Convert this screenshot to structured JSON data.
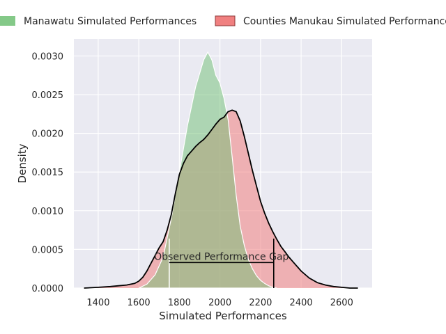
{
  "chart_data": {
    "type": "area",
    "xlabel": "Simulated Performances",
    "ylabel": "Density",
    "xlim": [
      1280,
      2750
    ],
    "ylim": [
      0,
      0.00322
    ],
    "x_ticks": [
      1400,
      1600,
      1800,
      2000,
      2200,
      2400,
      2600
    ],
    "x_tick_labels": [
      "1400",
      "1600",
      "1800",
      "2000",
      "2200",
      "2400",
      "2600"
    ],
    "y_ticks": [
      0,
      0.0005,
      0.001,
      0.0015,
      0.002,
      0.0025,
      0.003
    ],
    "y_tick_labels": [
      "0.0000",
      "0.0005",
      "0.0010",
      "0.0015",
      "0.0020",
      "0.0025",
      "0.0030"
    ],
    "grid": true,
    "legend_position": "top",
    "series": [
      {
        "name": "Manawatu Simulated Performances",
        "color": "#6fbf73",
        "x": [
          1600,
          1640,
          1680,
          1720,
          1760,
          1800,
          1840,
          1880,
          1920,
          1940,
          1960,
          1980,
          2000,
          2020,
          2040,
          2060,
          2080,
          2100,
          2120,
          2140,
          2160,
          2180,
          2200,
          2220,
          2240,
          2260,
          2280
        ],
        "y": [
          0,
          5e-05,
          0.00017,
          0.0004,
          0.0009,
          0.0015,
          0.0021,
          0.0026,
          0.00295,
          0.00305,
          0.00295,
          0.00275,
          0.00265,
          0.00245,
          0.00218,
          0.0017,
          0.0012,
          0.0008,
          0.00055,
          0.00037,
          0.00025,
          0.00016,
          0.0001,
          6e-05,
          3e-05,
          1e-05,
          0
        ]
      },
      {
        "name": "Counties Manukau Simulated Performances",
        "color": "#f08080",
        "x": [
          1330,
          1400,
          1460,
          1500,
          1540,
          1580,
          1600,
          1620,
          1640,
          1660,
          1680,
          1700,
          1720,
          1740,
          1760,
          1780,
          1800,
          1820,
          1840,
          1860,
          1880,
          1900,
          1920,
          1940,
          1960,
          1980,
          2000,
          2020,
          2040,
          2060,
          2080,
          2100,
          2120,
          2140,
          2160,
          2180,
          2200,
          2220,
          2240,
          2260,
          2280,
          2300,
          2320,
          2340,
          2360,
          2380,
          2400,
          2440,
          2480,
          2520,
          2560,
          2600,
          2640,
          2680
        ],
        "y": [
          0,
          1e-05,
          2e-05,
          3e-05,
          4e-05,
          6e-05,
          9e-05,
          0.00014,
          0.00022,
          0.00032,
          0.00042,
          0.00052,
          0.0006,
          0.00075,
          0.00095,
          0.00122,
          0.00147,
          0.00161,
          0.00171,
          0.00177,
          0.00183,
          0.00188,
          0.00192,
          0.00198,
          0.00205,
          0.00212,
          0.00218,
          0.00221,
          0.00228,
          0.0023,
          0.00228,
          0.00216,
          0.00196,
          0.00174,
          0.00152,
          0.00132,
          0.00112,
          0.00097,
          0.00084,
          0.00073,
          0.00063,
          0.00054,
          0.00047,
          0.0004,
          0.00034,
          0.00028,
          0.00022,
          0.00013,
          7e-05,
          4e-05,
          2e-05,
          1e-05,
          0,
          0
        ]
      }
    ],
    "annotation": {
      "text": "Observed Performance Gap",
      "x_start": 1750,
      "x_end": 2265,
      "y": 0.00033,
      "vline_top": 0.00064
    }
  }
}
